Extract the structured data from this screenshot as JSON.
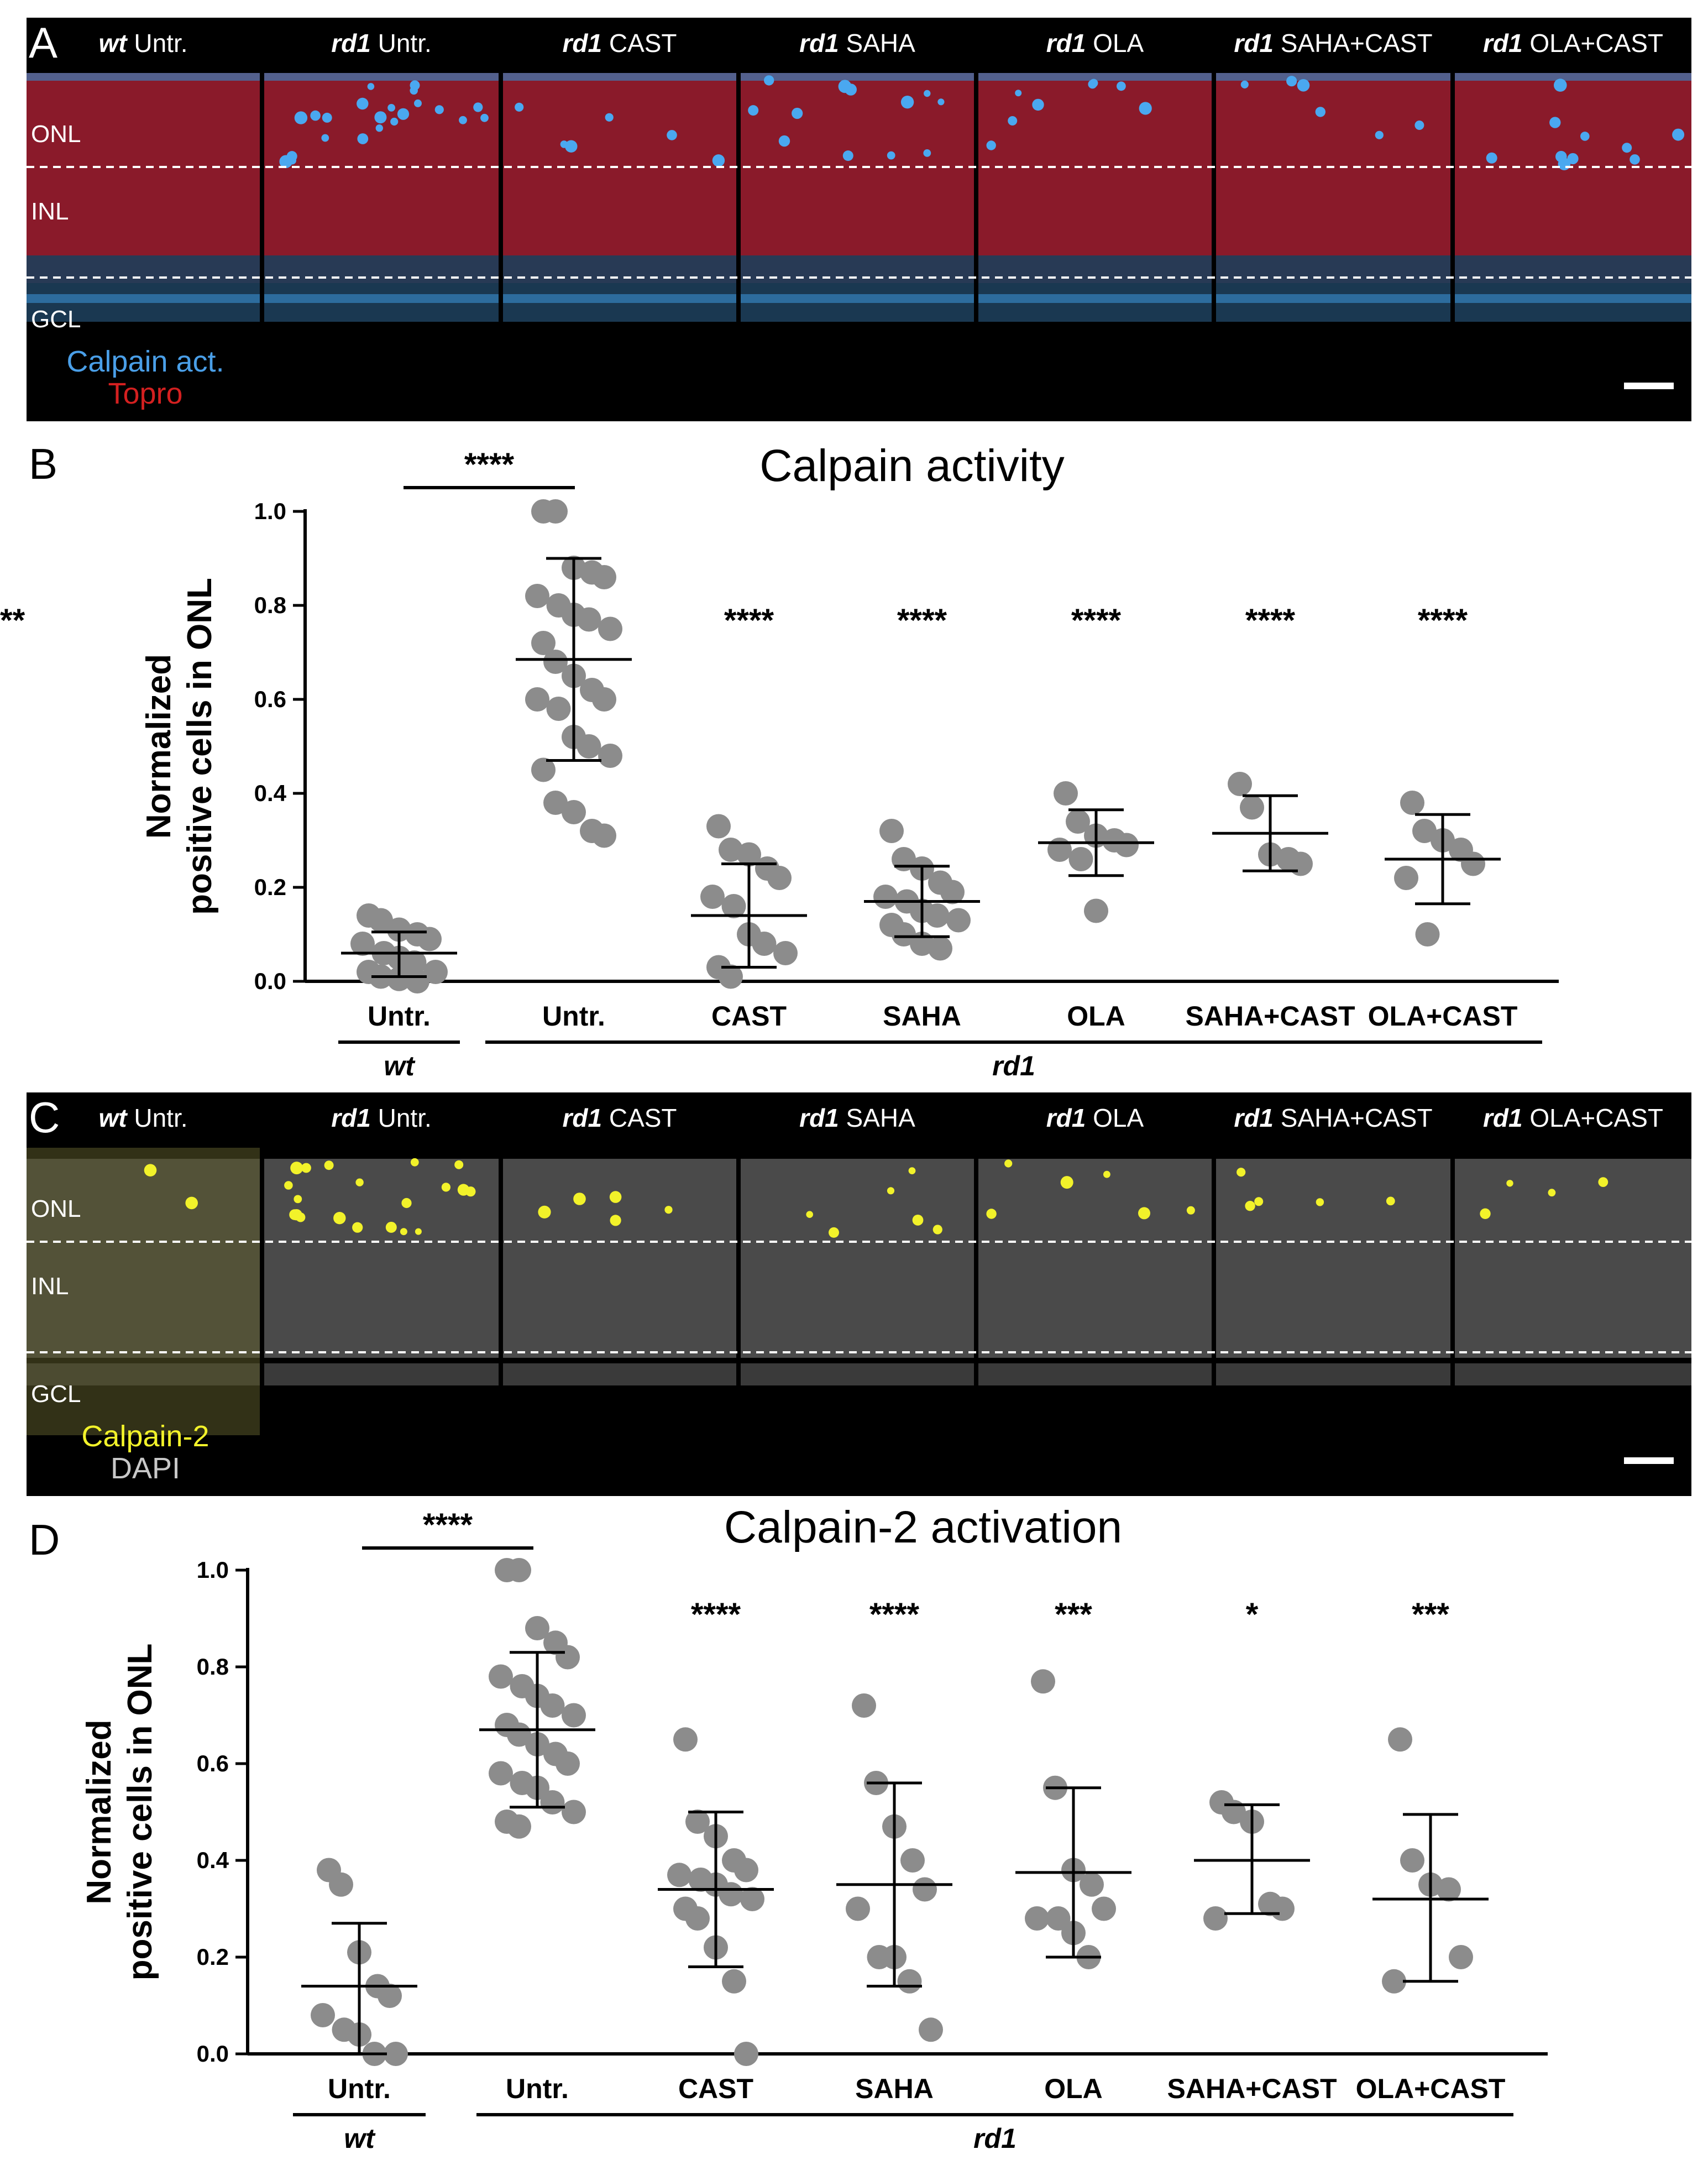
{
  "panels": {
    "A": {
      "letter": "A",
      "columns": [
        {
          "strain": "wt",
          "treatment": "Untr."
        },
        {
          "strain": "rd1",
          "treatment": "Untr."
        },
        {
          "strain": "rd1",
          "treatment": "CAST"
        },
        {
          "strain": "rd1",
          "treatment": "SAHA"
        },
        {
          "strain": "rd1",
          "treatment": "OLA"
        },
        {
          "strain": "rd1",
          "treatment": "SAHA+CAST"
        },
        {
          "strain": "rd1",
          "treatment": "OLA+CAST"
        }
      ],
      "layers": [
        "ONL",
        "INL",
        "GCL"
      ],
      "legend": [
        {
          "text": "Calpain act.",
          "color": "#4a9fe8"
        },
        {
          "text": "Topro",
          "color": "#d42020"
        }
      ],
      "tissue_color": "#8a1a2a"
    },
    "C": {
      "letter": "C",
      "columns": [
        {
          "strain": "wt",
          "treatment": "Untr."
        },
        {
          "strain": "rd1",
          "treatment": "Untr."
        },
        {
          "strain": "rd1",
          "treatment": "CAST"
        },
        {
          "strain": "rd1",
          "treatment": "SAHA"
        },
        {
          "strain": "rd1",
          "treatment": "OLA"
        },
        {
          "strain": "rd1",
          "treatment": "SAHA+CAST"
        },
        {
          "strain": "rd1",
          "treatment": "OLA+CAST"
        }
      ],
      "layers": [
        "ONL",
        "INL",
        "GCL"
      ],
      "legend": [
        {
          "text": "Calpain-2",
          "color": "#f2f22a"
        },
        {
          "text": "DAPI",
          "color": "#c8c8c8"
        }
      ],
      "tissue_color": "#4a4a4a"
    }
  },
  "chart_data": [
    {
      "type": "scatter",
      "panel": "B",
      "title": "Calpain activity",
      "ylabel": "Normalized positive cells in ONL",
      "ylim": [
        0,
        1.0
      ],
      "yticks": [
        "0.0",
        "0.2",
        "0.4",
        "0.6",
        "0.8",
        "1.0"
      ],
      "categories": [
        "Untr.",
        "Untr.",
        "CAST",
        "SAHA",
        "OLA",
        "SAHA+CAST",
        "OLA+CAST"
      ],
      "groups": [
        {
          "label": "wt",
          "span": [
            0,
            0
          ]
        },
        {
          "label": "rd1",
          "span": [
            1,
            6
          ]
        }
      ],
      "significance": [
        "****",
        "****",
        "****",
        "****",
        "****",
        "****"
      ],
      "significance_bracket": {
        "from": 0,
        "to": 1,
        "label": "****"
      },
      "point_color": "#8c8c8c",
      "series": [
        {
          "mean": 0.06,
          "sd_low": 0.01,
          "sd_high": 0.105,
          "points": [
            0.14,
            0.13,
            0.11,
            0.1,
            0.09,
            0.08,
            0.06,
            0.05,
            0.04,
            0.02,
            0.02,
            0.01,
            0.005,
            0.0
          ]
        },
        {
          "mean": 0.685,
          "sd_low": 0.47,
          "sd_high": 0.9,
          "points": [
            1.0,
            1.0,
            0.88,
            0.87,
            0.86,
            0.82,
            0.8,
            0.78,
            0.77,
            0.75,
            0.72,
            0.68,
            0.65,
            0.62,
            0.6,
            0.6,
            0.58,
            0.52,
            0.5,
            0.48,
            0.45,
            0.38,
            0.36,
            0.32,
            0.31
          ]
        },
        {
          "mean": 0.14,
          "sd_low": 0.03,
          "sd_high": 0.25,
          "points": [
            0.33,
            0.28,
            0.27,
            0.24,
            0.22,
            0.18,
            0.16,
            0.1,
            0.08,
            0.06,
            0.03,
            0.01
          ]
        },
        {
          "mean": 0.17,
          "sd_low": 0.095,
          "sd_high": 0.245,
          "points": [
            0.32,
            0.26,
            0.24,
            0.21,
            0.19,
            0.18,
            0.17,
            0.15,
            0.14,
            0.13,
            0.12,
            0.1,
            0.08,
            0.07
          ]
        },
        {
          "mean": 0.295,
          "sd_low": 0.225,
          "sd_high": 0.365,
          "points": [
            0.4,
            0.34,
            0.31,
            0.3,
            0.29,
            0.28,
            0.26,
            0.15
          ]
        },
        {
          "mean": 0.315,
          "sd_low": 0.235,
          "sd_high": 0.395,
          "points": [
            0.42,
            0.37,
            0.27,
            0.26,
            0.25
          ]
        },
        {
          "mean": 0.26,
          "sd_low": 0.165,
          "sd_high": 0.355,
          "points": [
            0.38,
            0.32,
            0.3,
            0.28,
            0.25,
            0.22,
            0.1
          ]
        }
      ]
    },
    {
      "type": "scatter",
      "panel": "D",
      "title": "Calpain-2 activation",
      "ylabel": "Normalized positive cells in ONL",
      "ylim": [
        0,
        1.0
      ],
      "yticks": [
        "0.0",
        "0.2",
        "0.4",
        "0.6",
        "0.8",
        "1.0"
      ],
      "categories": [
        "Untr.",
        "Untr.",
        "CAST",
        "SAHA",
        "OLA",
        "SAHA+CAST",
        "OLA+CAST"
      ],
      "groups": [
        {
          "label": "wt",
          "span": [
            0,
            0
          ]
        },
        {
          "label": "rd1",
          "span": [
            1,
            6
          ]
        }
      ],
      "significance": [
        "****",
        "****",
        "***",
        "*",
        "***"
      ],
      "significance_bracket": {
        "from": 0,
        "to": 1,
        "label": "****"
      },
      "point_color": "#8c8c8c",
      "series": [
        {
          "mean": 0.14,
          "sd_low": 0.0,
          "sd_high": 0.27,
          "points": [
            0.38,
            0.35,
            0.21,
            0.14,
            0.12,
            0.08,
            0.05,
            0.04,
            0.0,
            0.0
          ]
        },
        {
          "mean": 0.67,
          "sd_low": 0.51,
          "sd_high": 0.83,
          "points": [
            1.0,
            1.0,
            0.88,
            0.85,
            0.82,
            0.78,
            0.76,
            0.74,
            0.72,
            0.7,
            0.68,
            0.66,
            0.64,
            0.62,
            0.6,
            0.58,
            0.56,
            0.55,
            0.52,
            0.5,
            0.48,
            0.47
          ]
        },
        {
          "mean": 0.34,
          "sd_low": 0.18,
          "sd_high": 0.5,
          "points": [
            0.65,
            0.48,
            0.45,
            0.4,
            0.38,
            0.37,
            0.36,
            0.35,
            0.33,
            0.32,
            0.3,
            0.28,
            0.22,
            0.15,
            0.0
          ]
        },
        {
          "mean": 0.35,
          "sd_low": 0.14,
          "sd_high": 0.56,
          "points": [
            0.72,
            0.56,
            0.47,
            0.4,
            0.34,
            0.3,
            0.2,
            0.2,
            0.15,
            0.05
          ]
        },
        {
          "mean": 0.375,
          "sd_low": 0.2,
          "sd_high": 0.55,
          "points": [
            0.77,
            0.55,
            0.38,
            0.35,
            0.3,
            0.28,
            0.28,
            0.25,
            0.2
          ]
        },
        {
          "mean": 0.4,
          "sd_low": 0.29,
          "sd_high": 0.515,
          "points": [
            0.52,
            0.5,
            0.48,
            0.31,
            0.3,
            0.28
          ]
        },
        {
          "mean": 0.32,
          "sd_low": 0.15,
          "sd_high": 0.495,
          "points": [
            0.65,
            0.4,
            0.35,
            0.34,
            0.2,
            0.15
          ]
        }
      ]
    }
  ]
}
